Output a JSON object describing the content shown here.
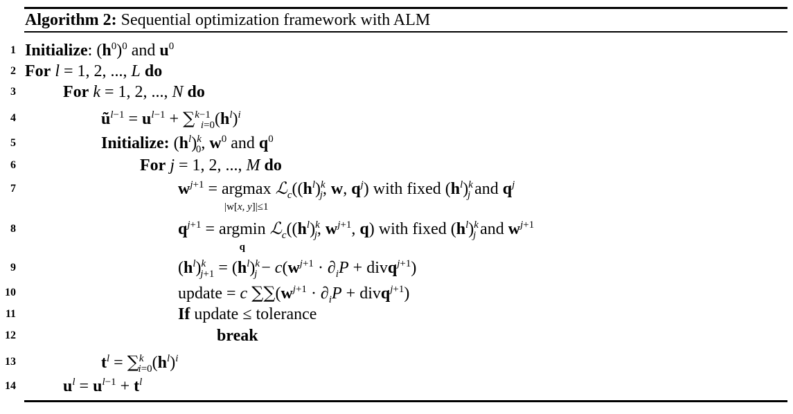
{
  "algorithm": {
    "label": "Algorithm 2:",
    "title": "Sequential optimization framework with ALM",
    "line_numbers": [
      "1",
      "2",
      "3",
      "4",
      "5",
      "6",
      "7",
      "8",
      "9",
      "10",
      "11",
      "12",
      "13",
      "14"
    ],
    "keywords": {
      "initialize": "Initialize",
      "for": "For",
      "do": "do",
      "if": "If",
      "break": "break",
      "and": "and",
      "with_fixed": "with fixed",
      "argmax": "argmax",
      "argmin": "argmin",
      "update": "update",
      "tolerance": "tolerance",
      "div": "div"
    },
    "lines": [
      "Initialize: (h0)0 and u0",
      "For l = 1, 2, ..., L do",
      "For k = 1, 2, ..., N do",
      "ũl−1 = ul−1 + Σi=0..k−1 (hl)i",
      "Initialize: (hl)0k, w0 and q0",
      "For j = 1, 2, ..., M do",
      "wj+1 = argmax|w[x,y]|≤1 Lc((hl)jk, w, qj) with fixed (hl)jk and qj",
      "qj+1 = argminq Lc((hl)jk, wj+1, q) with fixed (hl)jk and wj+1",
      "(hl)j+1k = (hl)jk − c(wj+1 · ∂iP + divqj+1)",
      "update = c ΣΣ(wj+1 · ∂iP + divqj+1)",
      "If update ≤ tolerance",
      "break",
      "tl = Σi=0..k (hl)i",
      "ul = ul−1 + tl"
    ]
  }
}
